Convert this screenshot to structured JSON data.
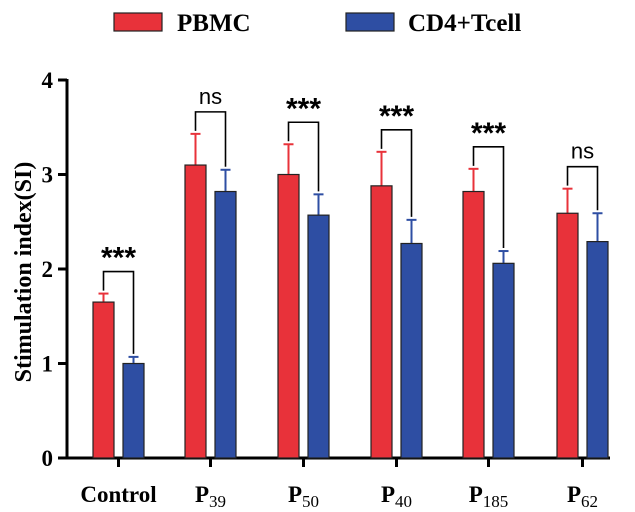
{
  "chart_data": {
    "type": "bar",
    "title": "",
    "xlabel": "",
    "ylabel": "Stimulation index(SI)",
    "ylim": [
      0,
      4
    ],
    "yticks": [
      "0",
      "1",
      "2",
      "3",
      "4"
    ],
    "grid": false,
    "legend_position": "top",
    "categories": [
      {
        "base": "Control",
        "sub": ""
      },
      {
        "base": "P",
        "sub": "39"
      },
      {
        "base": "P",
        "sub": "50"
      },
      {
        "base": "P",
        "sub": "40"
      },
      {
        "base": "P",
        "sub": "185"
      },
      {
        "base": "P",
        "sub": "62"
      }
    ],
    "series": [
      {
        "name": "PBMC",
        "color": "#e8323a",
        "values": [
          1.65,
          3.1,
          3.0,
          2.88,
          2.82,
          2.59
        ],
        "errors": [
          0.09,
          0.33,
          0.32,
          0.36,
          0.24,
          0.26
        ]
      },
      {
        "name": "CD4+Tcell",
        "color": "#2e4ea3",
        "values": [
          1.0,
          2.82,
          2.57,
          2.27,
          2.06,
          2.29
        ],
        "errors": [
          0.07,
          0.23,
          0.22,
          0.25,
          0.13,
          0.3
        ]
      }
    ],
    "significance": [
      "***",
      "ns",
      "***",
      "***",
      "***",
      "ns"
    ]
  }
}
